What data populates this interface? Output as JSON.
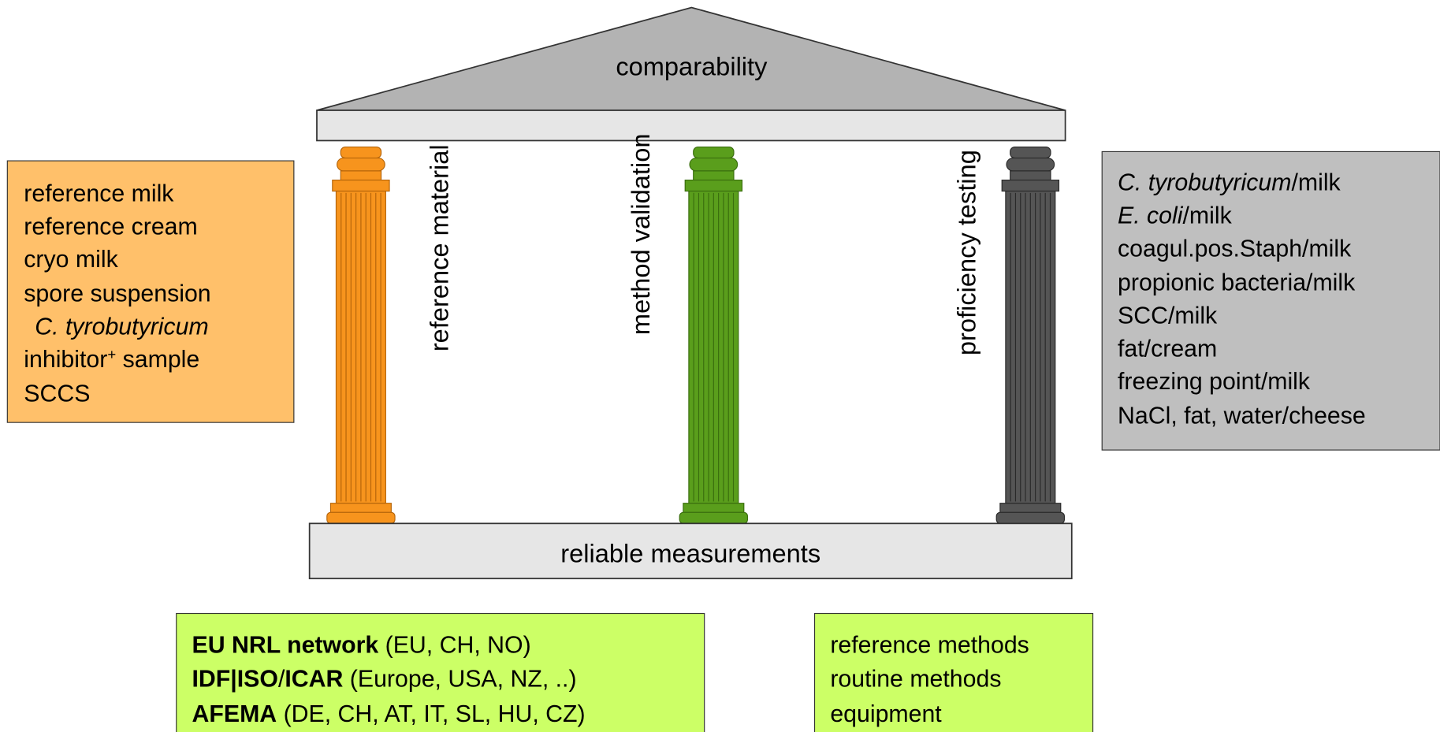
{
  "roof": "comparability",
  "base": "reliable measurements",
  "pillars": [
    "reference material",
    "method validation",
    "proficiency testing"
  ],
  "left_box": {
    "lines": [
      "reference milk",
      "reference cream",
      "cryo milk",
      "spore suspension",
      "C. tyrobutyricum",
      [
        "inhibitor",
        "+",
        " sample"
      ],
      "SCCS"
    ]
  },
  "right_box": {
    "lines": [
      [
        "C. tyrobutyricum",
        "/milk"
      ],
      [
        "E. coli",
        "/milk"
      ],
      "coagul.pos.Staph/milk",
      "propionic bacteria/milk",
      "SCC/milk",
      "fat/cream",
      "freezing point/milk",
      "NaCl, fat, water/cheese"
    ]
  },
  "networks": {
    "lines": [
      [
        "EU NRL network",
        " (EU, CH, NO)"
      ],
      [
        "IDF|ISO",
        "/",
        "ICAR",
        " (Europe, USA, NZ, ..)"
      ],
      [
        "AFEMA",
        " (DE, CH, AT, IT, SL, HU, CZ)"
      ]
    ]
  },
  "methods": {
    "lines": [
      "reference methods",
      "routine methods",
      "equipment"
    ]
  }
}
